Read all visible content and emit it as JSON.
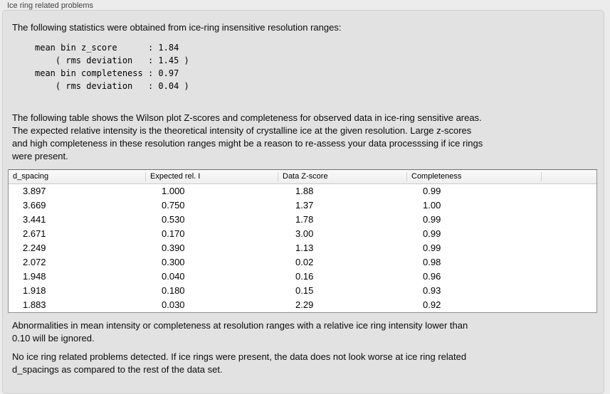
{
  "panel": {
    "title": "Ice ring related problems"
  },
  "intro": {
    "text": "The following statistics were obtained from ice-ring insensitive resolution ranges:"
  },
  "stats_block": {
    "text": "mean bin z_score      : 1.84\n    ( rms deviation   : 1.45 )\nmean bin completeness : 0.97\n    ( rms deviation   : 0.04 )"
  },
  "description": {
    "lines": [
      "The following table shows the Wilson plot Z-scores and completeness for observed data in ice-ring sensitive areas.",
      "The expected relative intensity is the theoretical intensity of crystalline ice at the given resolution. Large z-scores",
      "and high completeness in these resolution ranges might be a reason to re-assess your data processsing if ice rings",
      "were present."
    ]
  },
  "table": {
    "columns": [
      "d_spacing",
      "Expected rel. I",
      "Data Z-score",
      "Completeness",
      ""
    ],
    "rows": [
      [
        "3.897",
        "1.000",
        "1.88",
        "0.99",
        ""
      ],
      [
        "3.669",
        "0.750",
        "1.37",
        "1.00",
        ""
      ],
      [
        "3.441",
        "0.530",
        "1.78",
        "0.99",
        ""
      ],
      [
        "2.671",
        "0.170",
        "3.00",
        "0.99",
        ""
      ],
      [
        "2.249",
        "0.390",
        "1.13",
        "0.99",
        ""
      ],
      [
        "2.072",
        "0.300",
        "0.02",
        "0.98",
        ""
      ],
      [
        "1.948",
        "0.040",
        "0.16",
        "0.96",
        ""
      ],
      [
        "1.918",
        "0.180",
        "0.15",
        "0.93",
        ""
      ],
      [
        "1.883",
        "0.030",
        "2.29",
        "0.92",
        ""
      ]
    ]
  },
  "note_ignore": {
    "lines": [
      "Abnormalities in mean intensity or completeness at resolution ranges with a relative ice ring intensity lower than",
      "0.10 will be ignored."
    ]
  },
  "conclusion": {
    "lines": [
      "No ice ring related problems detected. If ice rings were present, the data does not look worse at ice ring related",
      "d_spacings as compared to the rest of the data set."
    ]
  },
  "colors": {
    "page_bg": "#ececec",
    "groupbox_bg": "#e2e2e2",
    "groupbox_border": "#cfcfcf",
    "table_bg": "#ffffff",
    "table_border": "#8f8f8f",
    "header_divider": "#d2d2d2",
    "text": "#000000"
  }
}
